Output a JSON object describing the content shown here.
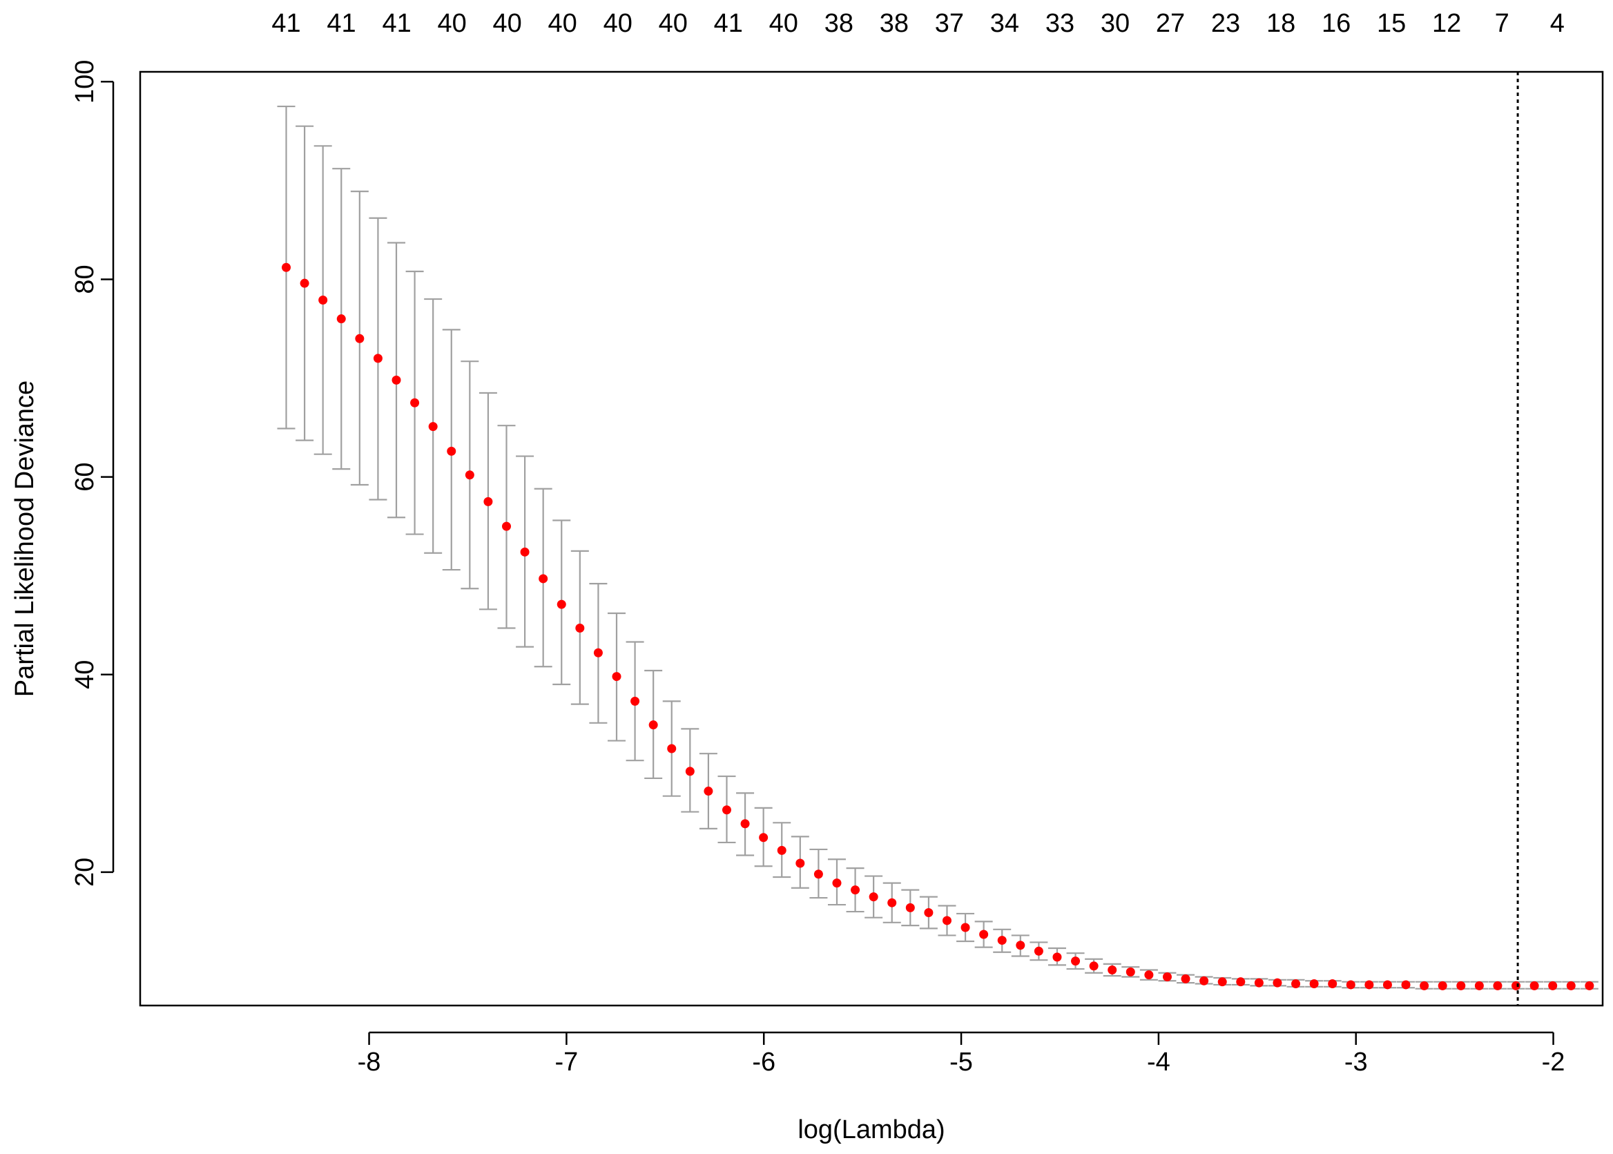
{
  "chart_data": {
    "type": "scatter",
    "title": "",
    "xlabel": "log(Lambda)",
    "ylabel": "Partial Likelihood Deviance",
    "xlim": [
      -9.16,
      -1.75
    ],
    "ylim": [
      6.5,
      101
    ],
    "x_ticks": [
      -8,
      -7,
      -6,
      -5,
      -4,
      -3,
      -2
    ],
    "y_ticks": [
      20,
      40,
      60,
      80,
      100
    ],
    "grid": false,
    "legend": "none",
    "point_color": "#ff0000",
    "errorbar_color": "#a0a0a0",
    "vline": {
      "x": -2.18,
      "style": "dotted",
      "color": "#000000"
    },
    "top_axis": {
      "x": [
        -8.42,
        -8.14,
        -7.86,
        -7.58,
        -7.3,
        -7.02,
        -6.74,
        -6.46,
        -6.18,
        -5.9,
        -5.62,
        -5.34,
        -5.06,
        -4.78,
        -4.5,
        -4.22,
        -3.94,
        -3.66,
        -3.38,
        -3.1,
        -2.82,
        -2.54,
        -2.26,
        -1.98
      ],
      "labels": [
        "41",
        "41",
        "41",
        "40",
        "40",
        "40",
        "40",
        "40",
        "41",
        "40",
        "38",
        "38",
        "37",
        "34",
        "33",
        "30",
        "27",
        "23",
        "18",
        "16",
        "15",
        "12",
        "7",
        "4"
      ]
    },
    "series": [
      {
        "x": [
          -8.42,
          -8.327,
          -8.234,
          -8.141,
          -8.048,
          -7.955,
          -7.862,
          -7.769,
          -7.676,
          -7.583,
          -7.49,
          -7.397,
          -7.304,
          -7.211,
          -7.118,
          -7.025,
          -6.932,
          -6.839,
          -6.746,
          -6.653,
          -6.56,
          -6.467,
          -6.374,
          -6.281,
          -6.188,
          -6.095,
          -6.002,
          -5.909,
          -5.816,
          -5.723,
          -5.63,
          -5.537,
          -5.444,
          -5.351,
          -5.258,
          -5.165,
          -5.072,
          -4.979,
          -4.886,
          -4.793,
          -4.7,
          -4.607,
          -4.514,
          -4.421,
          -4.328,
          -4.235,
          -4.142,
          -4.049,
          -3.956,
          -3.863,
          -3.77,
          -3.677,
          -3.584,
          -3.491,
          -3.398,
          -3.305,
          -3.212,
          -3.119,
          -3.026,
          -2.933,
          -2.84,
          -2.747,
          -2.654,
          -2.561,
          -2.468,
          -2.375,
          -2.282,
          -2.189,
          -2.096,
          -2.003,
          -1.91,
          -1.817
        ],
        "y": [
          81.2,
          79.6,
          77.9,
          76.0,
          74.0,
          72.0,
          69.8,
          67.5,
          65.1,
          62.6,
          60.2,
          57.5,
          55.0,
          52.4,
          49.7,
          47.1,
          44.7,
          42.2,
          39.8,
          37.3,
          34.9,
          32.5,
          30.2,
          28.2,
          26.3,
          24.9,
          23.5,
          22.2,
          20.9,
          19.8,
          18.9,
          18.2,
          17.5,
          16.9,
          16.4,
          15.9,
          15.1,
          14.4,
          13.7,
          13.1,
          12.6,
          12.0,
          11.4,
          11.0,
          10.5,
          10.1,
          9.9,
          9.6,
          9.4,
          9.2,
          9.0,
          8.9,
          8.9,
          8.8,
          8.8,
          8.7,
          8.7,
          8.7,
          8.6,
          8.6,
          8.6,
          8.6,
          8.5,
          8.5,
          8.5,
          8.5,
          8.5,
          8.5,
          8.5,
          8.5,
          8.5,
          8.5
        ],
        "upper": [
          97.5,
          95.5,
          93.5,
          91.2,
          88.9,
          86.2,
          83.7,
          80.8,
          78.0,
          74.9,
          71.7,
          68.5,
          65.2,
          62.1,
          58.8,
          55.6,
          52.5,
          49.2,
          46.2,
          43.3,
          40.4,
          37.3,
          34.5,
          32.0,
          29.7,
          28.0,
          26.5,
          25.0,
          23.6,
          22.3,
          21.3,
          20.4,
          19.6,
          18.9,
          18.2,
          17.5,
          16.6,
          15.8,
          15.0,
          14.2,
          13.6,
          12.9,
          12.3,
          11.8,
          11.2,
          10.7,
          10.4,
          10.1,
          9.8,
          9.6,
          9.4,
          9.3,
          9.2,
          9.2,
          9.1,
          9.1,
          9.0,
          9.0,
          8.9,
          8.9,
          8.9,
          8.9,
          8.9,
          8.9,
          8.9,
          8.9,
          8.9,
          8.9,
          8.9,
          8.9,
          8.9,
          8.9
        ],
        "lower": [
          64.9,
          63.7,
          62.3,
          60.8,
          59.2,
          57.7,
          55.9,
          54.2,
          52.3,
          50.6,
          48.7,
          46.6,
          44.7,
          42.8,
          40.8,
          39.0,
          37.0,
          35.1,
          33.3,
          31.3,
          29.5,
          27.7,
          26.1,
          24.4,
          23.0,
          21.7,
          20.6,
          19.5,
          18.4,
          17.4,
          16.7,
          16.0,
          15.4,
          14.9,
          14.6,
          14.3,
          13.6,
          13.0,
          12.4,
          11.9,
          11.5,
          11.1,
          10.6,
          10.2,
          9.8,
          9.5,
          9.4,
          9.1,
          9.0,
          8.8,
          8.7,
          8.6,
          8.6,
          8.5,
          8.5,
          8.4,
          8.4,
          8.4,
          8.3,
          8.3,
          8.3,
          8.3,
          8.2,
          8.2,
          8.2,
          8.2,
          8.2,
          8.2,
          8.2,
          8.2,
          8.2,
          8.2
        ]
      }
    ]
  }
}
